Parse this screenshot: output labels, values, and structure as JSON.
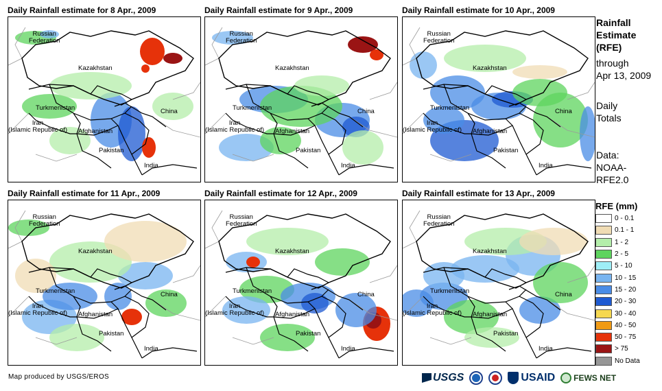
{
  "panels": [
    {
      "title": "Daily Rainfall estimate for 8 Apr., 2009"
    },
    {
      "title": "Daily Rainfall estimate for 9 Apr., 2009"
    },
    {
      "title": "Daily Rainfall estimate for 10 Apr., 2009"
    },
    {
      "title": "Daily Rainfall estimate for 11 Apr., 2009"
    },
    {
      "title": "Daily Rainfall estimate for 12 Apr., 2009"
    },
    {
      "title": "Daily Rainfall estimate for 13 Apr., 2009"
    }
  ],
  "map_labels": {
    "russia": "Russian\nFederation",
    "kazakhstan": "Kazakhstan",
    "turkmenistan": "Turkmenistan",
    "china": "China",
    "iran": "Iran\n(Islamic Republic of)",
    "afghanistan": "Afghanistan",
    "pakistan": "Pakistan",
    "india": "India"
  },
  "side": {
    "title_1": "Rainfall",
    "title_2": "Estimate",
    "title_3": "(RFE)",
    "through_1": "through",
    "through_2": "Apr 13, 2009",
    "daily_1": "Daily",
    "daily_2": "Totals",
    "data_1": "Data:",
    "data_2": "NOAA-",
    "data_3": "RFE2.0"
  },
  "legend": {
    "title": "RFE (mm)",
    "items": [
      {
        "label": "0 - 0.1",
        "color": "#ffffff"
      },
      {
        "label": "0.1 - 1",
        "color": "#f0dcb4"
      },
      {
        "label": "1 - 2",
        "color": "#b4eeaa"
      },
      {
        "label": "2 - 5",
        "color": "#5ed45e"
      },
      {
        "label": "5 - 10",
        "color": "#9eeef6"
      },
      {
        "label": "10 - 15",
        "color": "#78b4f0"
      },
      {
        "label": "15 - 20",
        "color": "#4a8ce6"
      },
      {
        "label": "20 - 30",
        "color": "#1e5ad2"
      },
      {
        "label": "30 - 40",
        "color": "#f6d850"
      },
      {
        "label": "40 - 50",
        "color": "#f09a14"
      },
      {
        "label": "50 - 75",
        "color": "#e6320a"
      },
      {
        "label": "> 75",
        "color": "#9a1414"
      },
      {
        "label": "No Data",
        "color": "#969696"
      }
    ]
  },
  "credit": "Map produced by USGS/EROS",
  "logos": {
    "usgs": "USGS",
    "usaid": "USAID",
    "fews": "FEWS NET"
  }
}
